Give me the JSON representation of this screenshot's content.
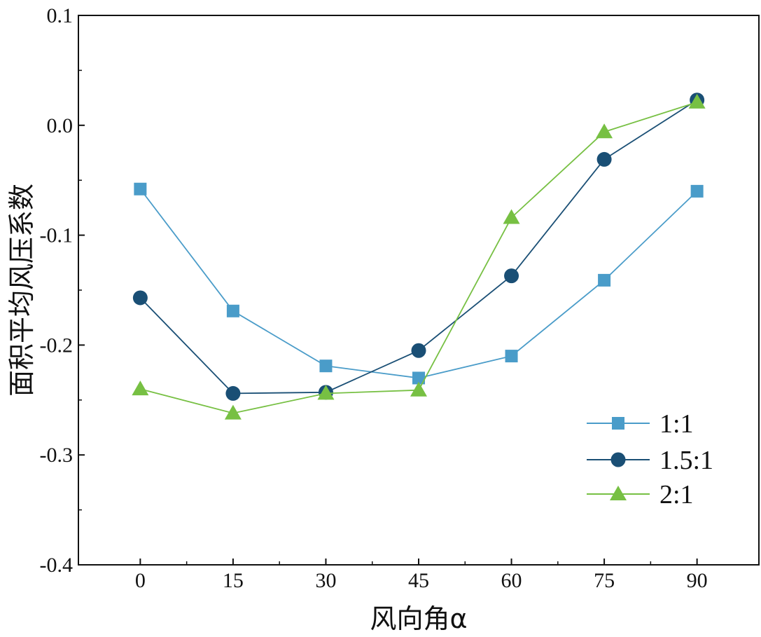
{
  "chart_data": {
    "type": "line",
    "title": "",
    "xlabel": "风向角α",
    "ylabel": "面积平均风压系数",
    "x": [
      0,
      15,
      30,
      45,
      60,
      75,
      90
    ],
    "x_tick_labels": [
      "0",
      "15",
      "30",
      "45",
      "60",
      "75",
      "90"
    ],
    "xlim": [
      -10,
      100
    ],
    "ylim": [
      -0.4,
      0.1
    ],
    "y_ticks": [
      -0.4,
      -0.3,
      -0.2,
      -0.1,
      0.0,
      0.1
    ],
    "y_tick_labels": [
      "-0.4",
      "-0.3",
      "-0.2",
      "-0.1",
      "0.0",
      "0.1"
    ],
    "y_minor_ticks": [
      -0.35,
      -0.25,
      -0.15,
      -0.05,
      0.05
    ],
    "grid": false,
    "legend_position": "bottom-right",
    "series": [
      {
        "name": "1:1",
        "marker": "square",
        "color": "#4a9cc9",
        "values": [
          -0.058,
          -0.169,
          -0.219,
          -0.23,
          -0.21,
          -0.141,
          -0.06
        ]
      },
      {
        "name": "1.5:1",
        "marker": "circle",
        "color": "#1a4f75",
        "values": [
          -0.157,
          -0.244,
          -0.243,
          -0.205,
          -0.137,
          -0.031,
          0.023
        ]
      },
      {
        "name": "2:1",
        "marker": "triangle",
        "color": "#77c043",
        "values": [
          -0.24,
          -0.262,
          -0.244,
          -0.241,
          -0.084,
          -0.006,
          0.021
        ]
      }
    ]
  }
}
